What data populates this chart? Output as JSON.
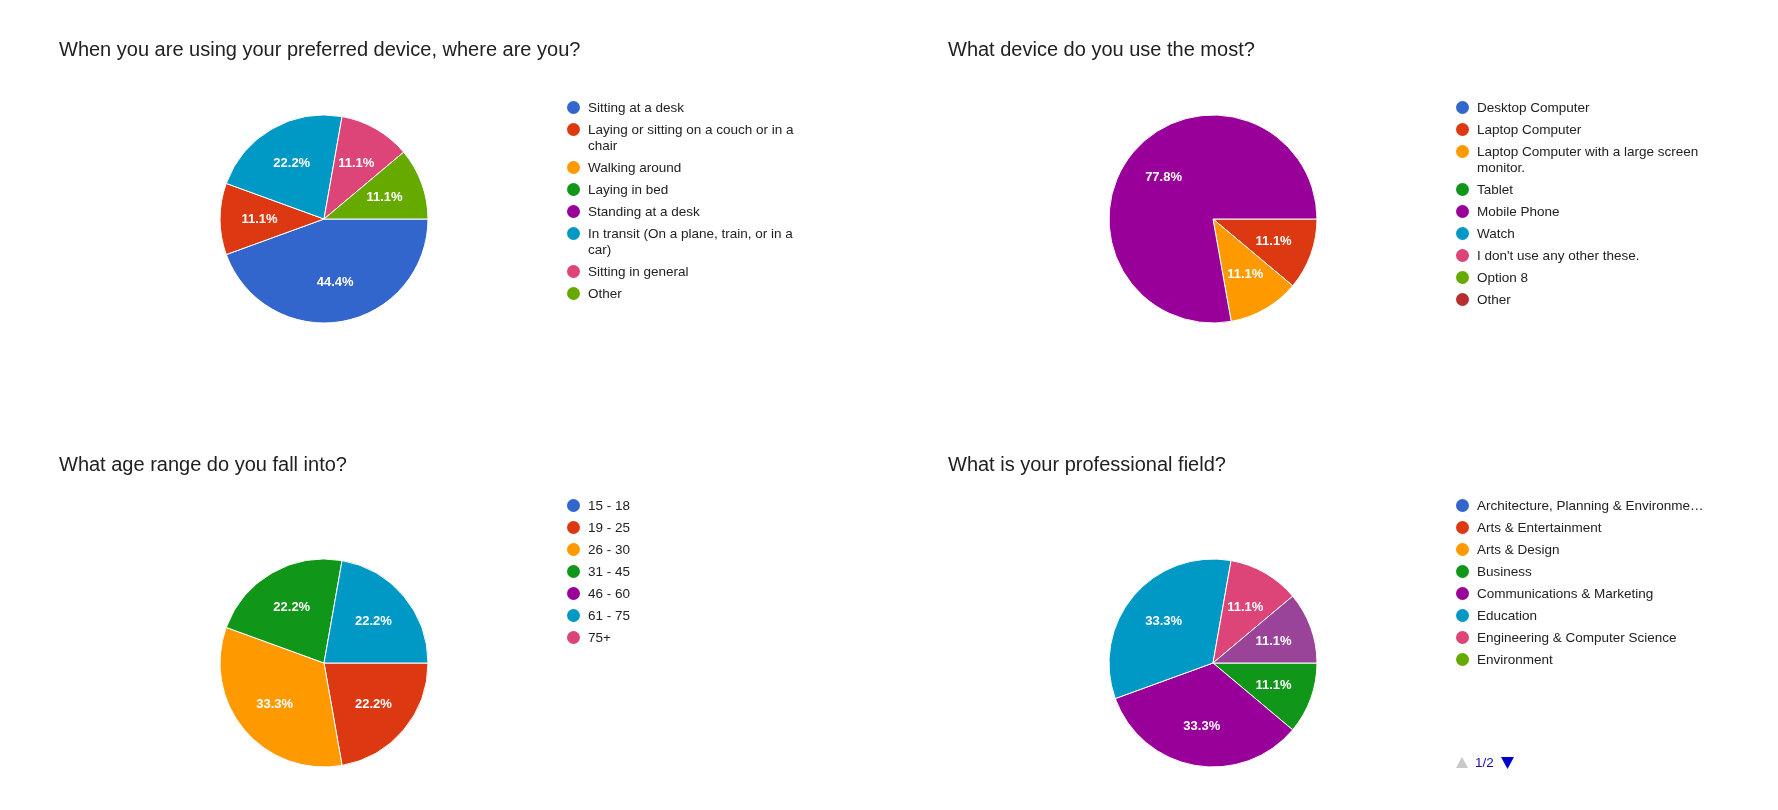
{
  "chart_data": [
    {
      "type": "pie",
      "title": "When you are using your preferred device, where are you?",
      "categories": [
        "Sitting at a desk",
        "Laying or sitting on a couch or in a chair",
        "Walking around",
        "Laying in bed",
        "Standing at a desk",
        "In transit (On a plane, train, or in a car)",
        "Sitting in general",
        "Other"
      ],
      "values": [
        44.4,
        11.1,
        0,
        0,
        0,
        22.2,
        11.1,
        11.1
      ],
      "colors": [
        "#3366cc",
        "#dc3912",
        "#ff9900",
        "#109618",
        "#990099",
        "#0099c6",
        "#dd4477",
        "#66aa00"
      ],
      "value_labels": [
        "44.4%",
        "11.1%",
        null,
        null,
        null,
        "22.2%",
        "11.1%",
        "11.1%"
      ],
      "legend": "right"
    },
    {
      "type": "pie",
      "title": "What device do you use the most?",
      "categories": [
        "Desktop Computer",
        "Laptop Computer",
        "Laptop Computer with a large screen monitor.",
        "Tablet",
        "Mobile Phone",
        "Watch",
        "I don't use any other these.",
        "Option 8",
        "Other"
      ],
      "values": [
        0,
        11.1,
        11.1,
        0,
        77.8,
        0,
        0,
        0,
        0
      ],
      "colors": [
        "#3366cc",
        "#dc3912",
        "#ff9900",
        "#109618",
        "#990099",
        "#0099c6",
        "#dd4477",
        "#66aa00",
        "#b82e2e"
      ],
      "value_labels": [
        null,
        "11.1%",
        "11.1%",
        null,
        "77.8%",
        null,
        null,
        null,
        null
      ],
      "legend": "right"
    },
    {
      "type": "pie",
      "title": "What age range do you fall into?",
      "categories": [
        "15 - 18",
        "19 - 25",
        "26 - 30",
        "31 - 45",
        "46 - 60",
        "61 - 75",
        "75+"
      ],
      "values": [
        0,
        22.2,
        33.3,
        22.2,
        0,
        22.2,
        0
      ],
      "colors": [
        "#3366cc",
        "#dc3912",
        "#ff9900",
        "#109618",
        "#990099",
        "#0099c6",
        "#dd4477"
      ],
      "value_labels": [
        null,
        "22.2%",
        "33.3%",
        "22.2%",
        null,
        "22.2%",
        null
      ],
      "legend": "right"
    },
    {
      "type": "pie",
      "title": "What is your professional field?",
      "categories": [
        "Architecture, Planning & Environme…",
        "Arts & Entertainment",
        "Arts & Design",
        "Business",
        "Communications & Marketing",
        "Education",
        "Engineering & Computer Science",
        "Environment",
        null
      ],
      "values": [
        0,
        0,
        0,
        11.1,
        33.3,
        33.3,
        11.1,
        0,
        11.1
      ],
      "colors": [
        "#3366cc",
        "#dc3912",
        "#ff9900",
        "#109618",
        "#990099",
        "#0099c6",
        "#dd4477",
        "#66aa00",
        "#994499"
      ],
      "value_labels": [
        null,
        null,
        null,
        "11.1%",
        "33.3%",
        "33.3%",
        "11.1%",
        null,
        "11.1%"
      ],
      "legend": "right",
      "annotations": [
        "1/2"
      ]
    }
  ]
}
